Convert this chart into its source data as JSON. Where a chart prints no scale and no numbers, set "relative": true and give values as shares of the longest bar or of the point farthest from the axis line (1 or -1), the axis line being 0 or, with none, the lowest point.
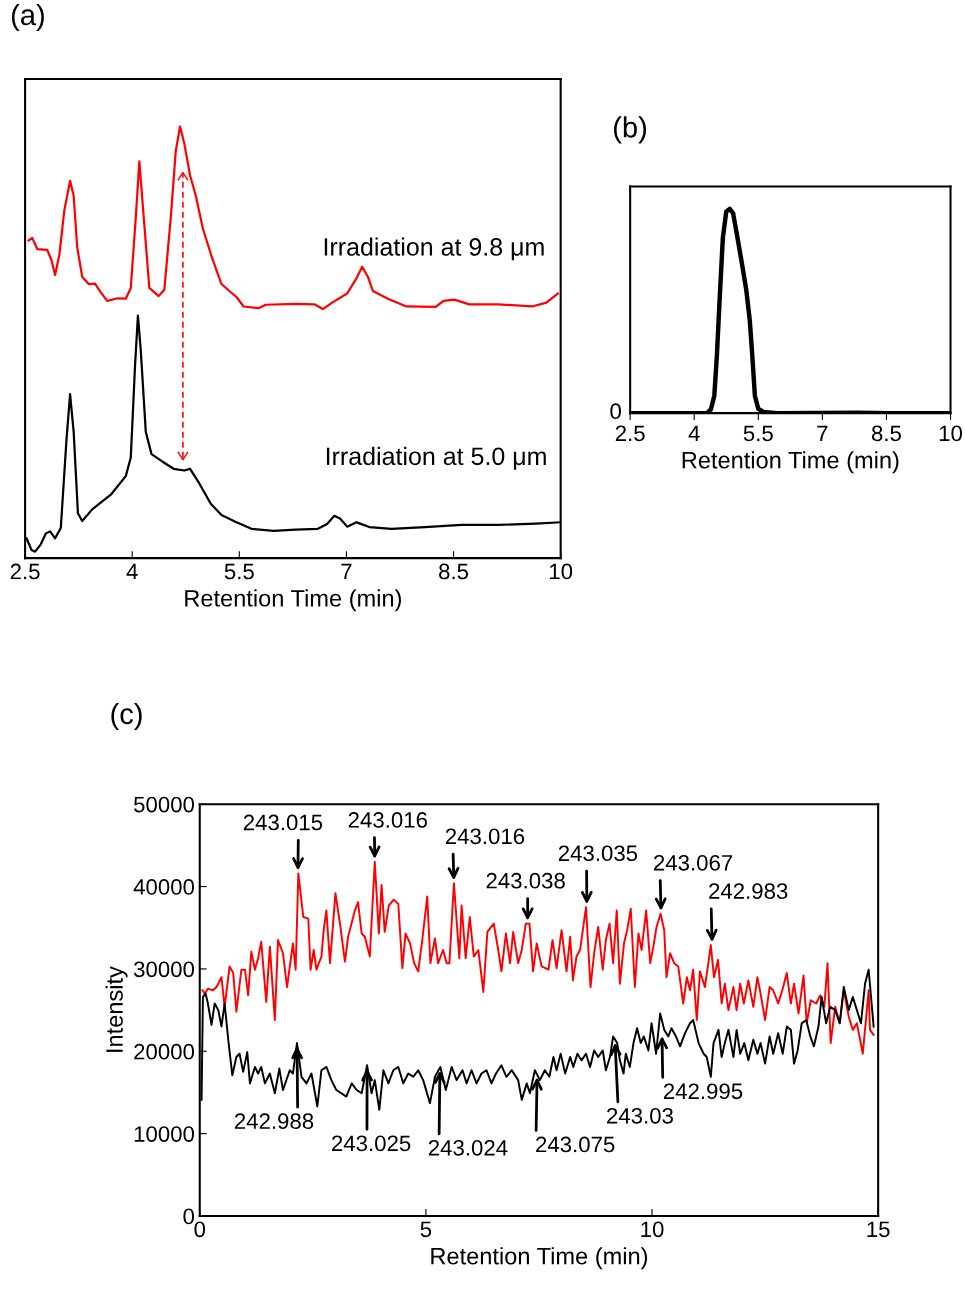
{
  "chart_data": [
    {
      "type": "line",
      "title": "(a)",
      "xlabel": "Retention Time (min)",
      "relative": true,
      "xlim": [
        2.5,
        10
      ],
      "xticks": [
        2.5,
        4,
        5.5,
        7,
        8.5,
        10
      ],
      "tick_labels": "x",
      "series": [
        {
          "name": "Irradiation at 9.8 μm",
          "color": "#ff0000",
          "x": [
            2.55,
            2.6,
            2.67,
            2.81,
            2.87,
            2.92,
            2.98,
            3.05,
            3.13,
            3.18,
            3.23,
            3.3,
            3.39,
            3.48,
            3.55,
            3.65,
            3.8,
            3.91,
            3.98,
            4.05,
            4.1,
            4.17,
            4.24,
            4.37,
            4.45,
            4.54,
            4.61,
            4.67,
            4.73,
            4.81,
            4.89,
            4.99,
            5.12,
            5.25,
            5.38,
            5.46,
            5.56,
            5.77,
            5.87,
            6.29,
            6.55,
            6.67,
            6.8,
            7.01,
            7.14,
            7.22,
            7.3,
            7.37,
            7.58,
            7.84,
            8.25,
            8.36,
            8.51,
            8.72,
            9.13,
            9.6,
            9.8,
            9.96
          ],
          "values": [
            0.736,
            0.742,
            0.716,
            0.714,
            0.69,
            0.656,
            0.703,
            0.806,
            0.874,
            0.84,
            0.72,
            0.652,
            0.635,
            0.636,
            0.618,
            0.596,
            0.602,
            0.601,
            0.626,
            0.789,
            0.919,
            0.772,
            0.626,
            0.607,
            0.622,
            0.789,
            0.943,
            1.0,
            0.96,
            0.887,
            0.84,
            0.763,
            0.695,
            0.635,
            0.616,
            0.605,
            0.583,
            0.579,
            0.587,
            0.589,
            0.588,
            0.577,
            0.592,
            0.613,
            0.648,
            0.675,
            0.652,
            0.619,
            0.601,
            0.583,
            0.582,
            0.596,
            0.599,
            0.588,
            0.588,
            0.583,
            0.592,
            0.613
          ]
        },
        {
          "name": "Irradiation at 5.0 μm",
          "color": "#000000",
          "x": [
            2.52,
            2.59,
            2.64,
            2.72,
            2.79,
            2.85,
            2.92,
            3.0,
            3.08,
            3.13,
            3.18,
            3.24,
            3.3,
            3.44,
            3.7,
            3.91,
            3.98,
            4.04,
            4.08,
            4.12,
            4.19,
            4.27,
            4.42,
            4.58,
            4.73,
            4.81,
            4.94,
            5.1,
            5.25,
            5.46,
            5.67,
            5.98,
            6.29,
            6.6,
            6.73,
            6.83,
            6.91,
            7.01,
            7.14,
            7.19,
            7.32,
            7.63,
            8.1,
            8.61,
            9.13,
            9.65,
            9.99
          ],
          "values": [
            0.046,
            0.019,
            0.015,
            0.032,
            0.057,
            0.062,
            0.046,
            0.07,
            0.275,
            0.38,
            0.293,
            0.104,
            0.086,
            0.113,
            0.147,
            0.19,
            0.233,
            0.447,
            0.562,
            0.481,
            0.293,
            0.241,
            0.224,
            0.207,
            0.203,
            0.207,
            0.173,
            0.126,
            0.1,
            0.083,
            0.068,
            0.063,
            0.066,
            0.068,
            0.079,
            0.098,
            0.092,
            0.073,
            0.083,
            0.08,
            0.072,
            0.068,
            0.072,
            0.077,
            0.077,
            0.08,
            0.083
          ]
        }
      ]
    },
    {
      "type": "line",
      "title": "(b)",
      "xlabel": "Retention Time (min)",
      "relative": true,
      "xlim": [
        2.5,
        10
      ],
      "xticks": [
        2.5,
        4,
        5.5,
        7,
        8.5,
        10
      ],
      "annotations": [
        "0"
      ],
      "series": [
        {
          "color": "#000000",
          "x": [
            2.5,
            4.3,
            4.39,
            4.47,
            4.53,
            4.59,
            4.67,
            4.75,
            4.83,
            4.91,
            5.0,
            5.12,
            5.22,
            5.3,
            5.36,
            5.42,
            5.5,
            5.63,
            5.94,
            7.81,
            8.59,
            10
          ],
          "values": [
            0,
            0,
            0.018,
            0.085,
            0.279,
            0.536,
            0.858,
            0.987,
            1.0,
            0.979,
            0.874,
            0.729,
            0.601,
            0.456,
            0.279,
            0.085,
            0.021,
            0.005,
            0,
            0.002,
            0,
            0
          ]
        }
      ]
    },
    {
      "type": "line",
      "title": "(c)",
      "xlabel": "Retention Time (min)",
      "ylabel": "Intensity",
      "xlim": [
        0,
        15
      ],
      "xticks": [
        0,
        5,
        10,
        15
      ],
      "ylim": [
        0,
        50000
      ],
      "yticks": [
        0,
        10000,
        20000,
        30000,
        40000,
        50000
      ],
      "series": [
        {
          "color": "#ff0000",
          "x": [
            0.06,
            0.11,
            0.18,
            0.29,
            0.37,
            0.48,
            0.55,
            0.66,
            0.74,
            0.81,
            0.92,
            1.0,
            1.07,
            1.14,
            1.22,
            1.29,
            1.36,
            1.47,
            1.55,
            1.66,
            1.73,
            1.84,
            1.93,
            2.06,
            2.12,
            2.18,
            2.29,
            2.4,
            2.45,
            2.52,
            2.58,
            2.69,
            2.74,
            2.8,
            2.88,
            3.0,
            3.1,
            3.21,
            3.28,
            3.43,
            3.5,
            3.58,
            3.65,
            3.76,
            3.87,
            3.96,
            4.02,
            4.09,
            4.18,
            4.29,
            4.39,
            4.48,
            4.55,
            4.65,
            4.74,
            4.83,
            4.92,
            5.03,
            5.1,
            5.2,
            5.27,
            5.38,
            5.46,
            5.52,
            5.62,
            5.74,
            5.79,
            5.88,
            5.97,
            6.06,
            6.16,
            6.27,
            6.36,
            6.5,
            6.6,
            6.67,
            6.77,
            6.86,
            6.93,
            7.04,
            7.12,
            7.21,
            7.29,
            7.37,
            7.45,
            7.56,
            7.71,
            7.8,
            7.89,
            8.0,
            8.11,
            8.19,
            8.25,
            8.33,
            8.41,
            8.54,
            8.64,
            8.72,
            8.81,
            8.91,
            8.98,
            9.06,
            9.14,
            9.22,
            9.29,
            9.38,
            9.45,
            9.53,
            9.62,
            9.7,
            9.77,
            9.87,
            9.96,
            10.03,
            10.1,
            10.19,
            10.27,
            10.32,
            10.4,
            10.49,
            10.58,
            10.69,
            10.77,
            10.84,
            10.91,
            10.99,
            11.06,
            11.17,
            11.3,
            11.37,
            11.46,
            11.54,
            11.61,
            11.69,
            11.8,
            11.87,
            11.95,
            12.03,
            12.13,
            12.24,
            12.33,
            12.4,
            12.5,
            12.6,
            12.68,
            12.79,
            12.89,
            12.98,
            13.07,
            13.14,
            13.24,
            13.35,
            13.42,
            13.51,
            13.63,
            13.72,
            13.81,
            13.88,
            13.95,
            14.05,
            14.15,
            14.24,
            14.35,
            14.44,
            14.53,
            14.66,
            14.79,
            14.82,
            14.9
          ],
          "values": [
            27400,
            27000,
            27600,
            27400,
            27800,
            29000,
            25400,
            30300,
            29500,
            24800,
            29900,
            29900,
            26800,
            32100,
            29900,
            31300,
            33300,
            26000,
            32700,
            23800,
            33500,
            31900,
            27800,
            33100,
            29900,
            41600,
            36300,
            36100,
            29900,
            32300,
            29900,
            31500,
            34700,
            37100,
            30700,
            39200,
            35500,
            30900,
            33900,
            37100,
            38100,
            34300,
            33900,
            31500,
            43000,
            34300,
            40200,
            34500,
            37700,
            38400,
            37900,
            30100,
            34300,
            33100,
            30700,
            29700,
            33500,
            38800,
            30700,
            33700,
            30700,
            32300,
            30700,
            30700,
            40400,
            31300,
            37700,
            31300,
            36300,
            31500,
            32300,
            27200,
            34500,
            35500,
            32300,
            29700,
            34300,
            30700,
            34500,
            30700,
            32300,
            35500,
            35500,
            29700,
            33100,
            30300,
            29900,
            33500,
            30100,
            34700,
            29700,
            33900,
            28600,
            31500,
            32300,
            37500,
            27800,
            31900,
            35100,
            29900,
            33500,
            35500,
            30700,
            37100,
            28200,
            33100,
            34700,
            37300,
            27800,
            34300,
            32300,
            37100,
            30700,
            32700,
            35100,
            36700,
            34700,
            29000,
            31900,
            30700,
            30300,
            25800,
            29000,
            27400,
            29900,
            23800,
            29700,
            27800,
            32900,
            29000,
            31100,
            25800,
            28200,
            25000,
            27800,
            25000,
            28200,
            25800,
            28600,
            25400,
            29000,
            27000,
            23800,
            27800,
            27400,
            25800,
            27600,
            29500,
            25800,
            28200,
            24600,
            29200,
            23400,
            26200,
            25800,
            26800,
            25400,
            30700,
            21000,
            25400,
            23400,
            27400,
            24200,
            22600,
            23400,
            19700,
            27400,
            22600,
            22000
          ]
        },
        {
          "color": "#000000",
          "x": [
            0.04,
            0.07,
            0.13,
            0.18,
            0.26,
            0.33,
            0.41,
            0.48,
            0.55,
            0.63,
            0.72,
            0.81,
            0.88,
            0.96,
            1.05,
            1.11,
            1.22,
            1.29,
            1.36,
            1.44,
            1.55,
            1.66,
            1.76,
            1.84,
            1.99,
            2.06,
            2.15,
            2.25,
            2.36,
            2.47,
            2.6,
            2.69,
            2.8,
            2.91,
            3.02,
            3.13,
            3.24,
            3.36,
            3.47,
            3.58,
            3.7,
            3.8,
            3.87,
            3.97,
            4.06,
            4.17,
            4.28,
            4.39,
            4.5,
            4.61,
            4.72,
            4.83,
            4.94,
            5.09,
            5.2,
            5.32,
            5.44,
            5.57,
            5.68,
            5.81,
            5.9,
            6.01,
            6.12,
            6.23,
            6.34,
            6.45,
            6.55,
            6.67,
            6.78,
            6.9,
            7.04,
            7.12,
            7.23,
            7.3,
            7.41,
            7.52,
            7.63,
            7.73,
            7.82,
            7.89,
            7.98,
            8.08,
            8.19,
            8.26,
            8.35,
            8.44,
            8.54,
            8.63,
            8.72,
            8.81,
            8.91,
            8.98,
            9.07,
            9.14,
            9.23,
            9.29,
            9.37,
            9.42,
            9.51,
            9.59,
            9.67,
            9.75,
            9.82,
            9.92,
            9.99,
            10.09,
            10.18,
            10.27,
            10.36,
            10.43,
            10.53,
            10.62,
            10.73,
            10.84,
            10.91,
            11.03,
            11.14,
            11.21,
            11.3,
            11.36,
            11.47,
            11.54,
            11.61,
            11.69,
            11.8,
            11.87,
            11.95,
            12.04,
            12.13,
            12.24,
            12.33,
            12.4,
            12.5,
            12.6,
            12.68,
            12.79,
            12.89,
            12.98,
            13.07,
            13.14,
            13.22,
            13.31,
            13.41,
            13.5,
            13.58,
            13.68,
            13.75,
            13.85,
            13.94,
            14.05,
            14.15,
            14.24,
            14.35,
            14.44,
            14.53,
            14.62,
            14.71,
            14.79,
            14.9
          ],
          "values": [
            14100,
            26600,
            27000,
            25800,
            23200,
            25800,
            25000,
            23000,
            25800,
            21400,
            17100,
            19300,
            19700,
            17500,
            19900,
            16100,
            18100,
            17300,
            18100,
            16100,
            17300,
            14900,
            17900,
            15300,
            17700,
            17300,
            21000,
            16900,
            16100,
            17300,
            13300,
            17700,
            18100,
            16500,
            15300,
            14900,
            14500,
            16100,
            15300,
            14900,
            18300,
            14900,
            16500,
            12900,
            17700,
            16100,
            17700,
            18100,
            16100,
            17300,
            16900,
            17700,
            16500,
            13700,
            16900,
            18100,
            15300,
            18100,
            16500,
            17700,
            16100,
            17700,
            16100,
            17300,
            17700,
            16100,
            17300,
            18300,
            16900,
            17700,
            16500,
            14100,
            16100,
            14900,
            17700,
            16500,
            17700,
            16900,
            19300,
            17700,
            19700,
            17300,
            19300,
            18100,
            19700,
            18900,
            19700,
            18100,
            20100,
            19300,
            20100,
            17700,
            19300,
            21800,
            21000,
            18900,
            17300,
            19700,
            18100,
            21000,
            22800,
            21000,
            21800,
            20100,
            23400,
            19700,
            24600,
            22600,
            21800,
            22800,
            21800,
            20600,
            22200,
            23400,
            23800,
            21000,
            19700,
            19300,
            16900,
            21000,
            22600,
            19300,
            21000,
            22600,
            19300,
            22600,
            19700,
            21000,
            18900,
            21400,
            19700,
            21000,
            18500,
            21800,
            19700,
            22200,
            19700,
            23000,
            22600,
            18500,
            20100,
            23400,
            23800,
            21800,
            20600,
            23000,
            26600,
            23400,
            25400,
            25000,
            23400,
            27800,
            25000,
            26600,
            25000,
            23400,
            28200,
            29900,
            23000
          ]
        }
      ],
      "annotations": [
        {
          "text": "243.015",
          "x": 2.17,
          "y": 41600
        },
        {
          "text": "243.016",
          "x": 3.87,
          "y": 43000
        },
        {
          "text": "243.016",
          "x": 5.62,
          "y": 40400
        },
        {
          "text": "243.038",
          "x": 7.25,
          "y": 35500
        },
        {
          "text": "243.035",
          "x": 8.56,
          "y": 37500
        },
        {
          "text": "243.067",
          "x": 10.2,
          "y": 36700
        },
        {
          "text": "242.983",
          "x": 11.33,
          "y": 32900
        },
        {
          "text": "242.988",
          "x": 2.15,
          "y": 21000
        },
        {
          "text": "243.025",
          "x": 3.7,
          "y": 18300
        },
        {
          "text": "243.024",
          "x": 5.31,
          "y": 18000
        },
        {
          "text": "243.075",
          "x": 7.46,
          "y": 17200
        },
        {
          "text": "243.03",
          "x": 9.18,
          "y": 21400
        },
        {
          "text": "242.995",
          "x": 10.22,
          "y": 22200
        }
      ]
    }
  ]
}
